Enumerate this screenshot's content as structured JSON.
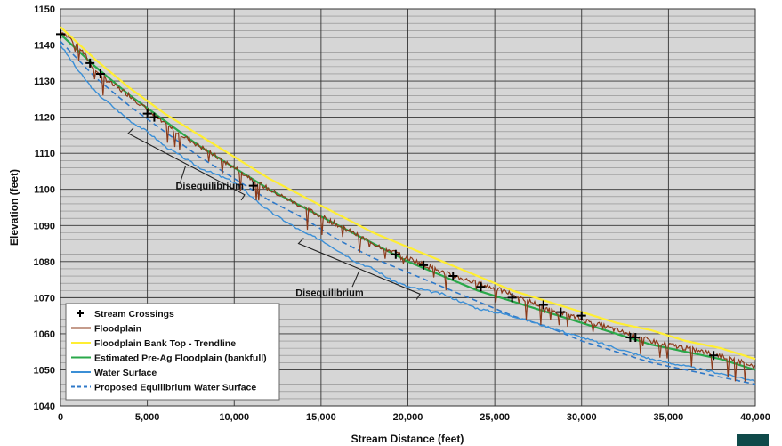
{
  "chart_data": {
    "type": "line",
    "xlabel": "Stream Distance (feet)",
    "ylabel": "Elevation (feet)",
    "xlim": [
      0,
      40000
    ],
    "ylim": [
      1040,
      1150
    ],
    "x_ticks": [
      0,
      5000,
      10000,
      15000,
      20000,
      25000,
      30000,
      35000,
      40000
    ],
    "x_tick_labels": [
      "0",
      "5,000",
      "10,000",
      "15,000",
      "20,000",
      "25,000",
      "30,000",
      "35,000",
      "40,000"
    ],
    "y_ticks": [
      1040,
      1050,
      1060,
      1070,
      1080,
      1090,
      1100,
      1110,
      1120,
      1130,
      1140,
      1150
    ],
    "y_tick_labels": [
      "1040",
      "1050",
      "1060",
      "1070",
      "1080",
      "1090",
      "1100",
      "1110",
      "1120",
      "1130",
      "1140",
      "1150"
    ],
    "grid": true,
    "minor_y_grid_step": 2,
    "plot_background": "#d6d6d6",
    "legend_position": "bottom-left",
    "series": [
      {
        "name": "Stream Crossings",
        "kind": "markers",
        "color": "#000000",
        "x": [
          0,
          1700,
          2300,
          5000,
          5400,
          11100,
          19300,
          20900,
          22600,
          24200,
          26000,
          27800,
          28800,
          30000,
          32800,
          33100,
          37600
        ],
        "y": [
          1143,
          1135,
          1132,
          1121,
          1120,
          1101,
          1082,
          1079,
          1076,
          1073,
          1070,
          1068,
          1066,
          1065,
          1059,
          1059,
          1054
        ]
      },
      {
        "name": "Floodplain",
        "kind": "noisy-line",
        "color": "#8b3a1a",
        "x": [
          0,
          1000,
          2000,
          3000,
          4000,
          5000,
          6000,
          8000,
          10000,
          12000,
          14000,
          16000,
          18000,
          20000,
          22000,
          24000,
          26000,
          28000,
          30000,
          32000,
          34000,
          36000,
          38000,
          40000
        ],
        "y": [
          1144,
          1140,
          1133,
          1129,
          1126,
          1122,
          1118,
          1112,
          1106,
          1100,
          1095,
          1090,
          1085,
          1081,
          1077,
          1074,
          1071,
          1067,
          1064,
          1061,
          1058,
          1056,
          1054,
          1051
        ]
      },
      {
        "name": "Floodplain Bank Top - Trendline",
        "kind": "line",
        "color": "#ffee33",
        "x": [
          0,
          2000,
          4000,
          6000,
          8000,
          10000,
          12000,
          14000,
          16000,
          18000,
          20000,
          22000,
          24000,
          26000,
          28000,
          30000,
          32000,
          34000,
          36000,
          38000,
          40000
        ],
        "y": [
          1145,
          1136,
          1128,
          1121,
          1115,
          1109,
          1103,
          1098,
          1093,
          1088,
          1084,
          1080,
          1076,
          1072,
          1069,
          1066,
          1063,
          1061,
          1058,
          1056,
          1053
        ]
      },
      {
        "name": "Estimated Pre-Ag Floodplain (bankfull)",
        "kind": "line",
        "color": "#2aa84a",
        "x": [
          0,
          2000,
          4000,
          6000,
          8000,
          10000,
          12000,
          14000,
          16000,
          18000,
          20000,
          22000,
          24000,
          26000,
          28000,
          30000,
          32000,
          34000,
          36000,
          38000,
          40000
        ],
        "y": [
          1143,
          1134,
          1126,
          1119,
          1112,
          1106,
          1100,
          1095,
          1090,
          1085,
          1080,
          1076,
          1072,
          1069,
          1066,
          1063,
          1060,
          1057,
          1055,
          1053,
          1050
        ]
      },
      {
        "name": "Water Surface",
        "kind": "step-line",
        "color": "#3b8fd6",
        "x": [
          0,
          1000,
          2000,
          3000,
          4000,
          5000,
          6000,
          7000,
          8000,
          9000,
          10000,
          11000,
          12000,
          13000,
          14000,
          15000,
          16000,
          17000,
          18000,
          19000,
          20000,
          21000,
          22000,
          23000,
          24000,
          25000,
          26000,
          28000,
          30000,
          32000,
          34000,
          36000,
          38000,
          40000
        ],
        "y": [
          1140,
          1133,
          1127,
          1123,
          1119,
          1116,
          1112,
          1109,
          1106,
          1104,
          1102,
          1098,
          1094,
          1091,
          1088,
          1086,
          1083,
          1080,
          1078,
          1075,
          1073,
          1072,
          1071,
          1069,
          1067,
          1066,
          1065,
          1062,
          1059,
          1056,
          1053,
          1051,
          1049,
          1047
        ]
      },
      {
        "name": "Proposed Equilibrium Water Surface",
        "kind": "dashed-line",
        "color": "#2f79c8",
        "x": [
          0,
          2000,
          4000,
          6000,
          8000,
          10000,
          12000,
          14000,
          16000,
          18000,
          20000,
          22000,
          24000,
          26000,
          28000,
          30000,
          32000,
          34000,
          36000,
          38000,
          40000
        ],
        "y": [
          1141,
          1131,
          1123,
          1116,
          1109,
          1103,
          1097,
          1092,
          1086,
          1081,
          1077,
          1073,
          1069,
          1065,
          1062,
          1058,
          1055,
          1052,
          1050,
          1048,
          1046
        ]
      }
    ],
    "annotations": [
      {
        "text": "Disequilibrium",
        "label_at": [
          5300,
          1101
        ],
        "bracket": [
          [
            4200,
            1117
          ],
          [
            3900,
            1115.5
          ],
          [
            10600,
            1098.5
          ],
          [
            10400,
            1097
          ],
          [
            7200,
            1106.5
          ],
          [
            6900,
            1102
          ]
        ]
      },
      {
        "text": "Disequilibrium",
        "label_at": [
          12200,
          1071.5
        ],
        "bracket": [
          [
            14000,
            1086.5
          ],
          [
            13700,
            1085
          ],
          [
            20700,
            1071
          ],
          [
            20500,
            1069.5
          ],
          [
            17200,
            1077.5
          ],
          [
            16800,
            1073
          ]
        ]
      }
    ]
  }
}
